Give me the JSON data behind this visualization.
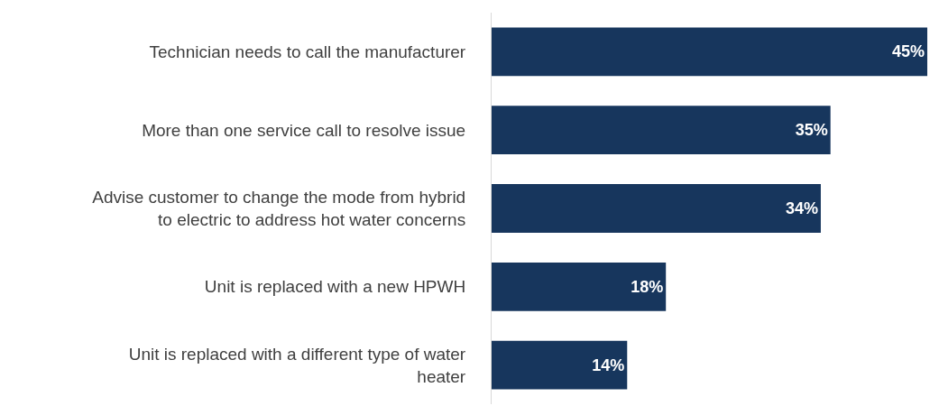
{
  "chart_data": {
    "type": "bar",
    "orientation": "horizontal",
    "categories": [
      "Technician needs to call the manufacturer",
      "More than one service call to resolve issue",
      "Advise customer to change the mode from hybrid to electric to address hot water concerns",
      "Unit is replaced with a new HPWH",
      "Unit is replaced with a different type of water heater"
    ],
    "values": [
      45,
      35,
      34,
      18,
      14
    ],
    "value_labels": [
      "45%",
      "35%",
      "34%",
      "18%",
      "14%"
    ],
    "color": "#17365d",
    "xlim": [
      0,
      45
    ],
    "tick_labels": "y"
  }
}
